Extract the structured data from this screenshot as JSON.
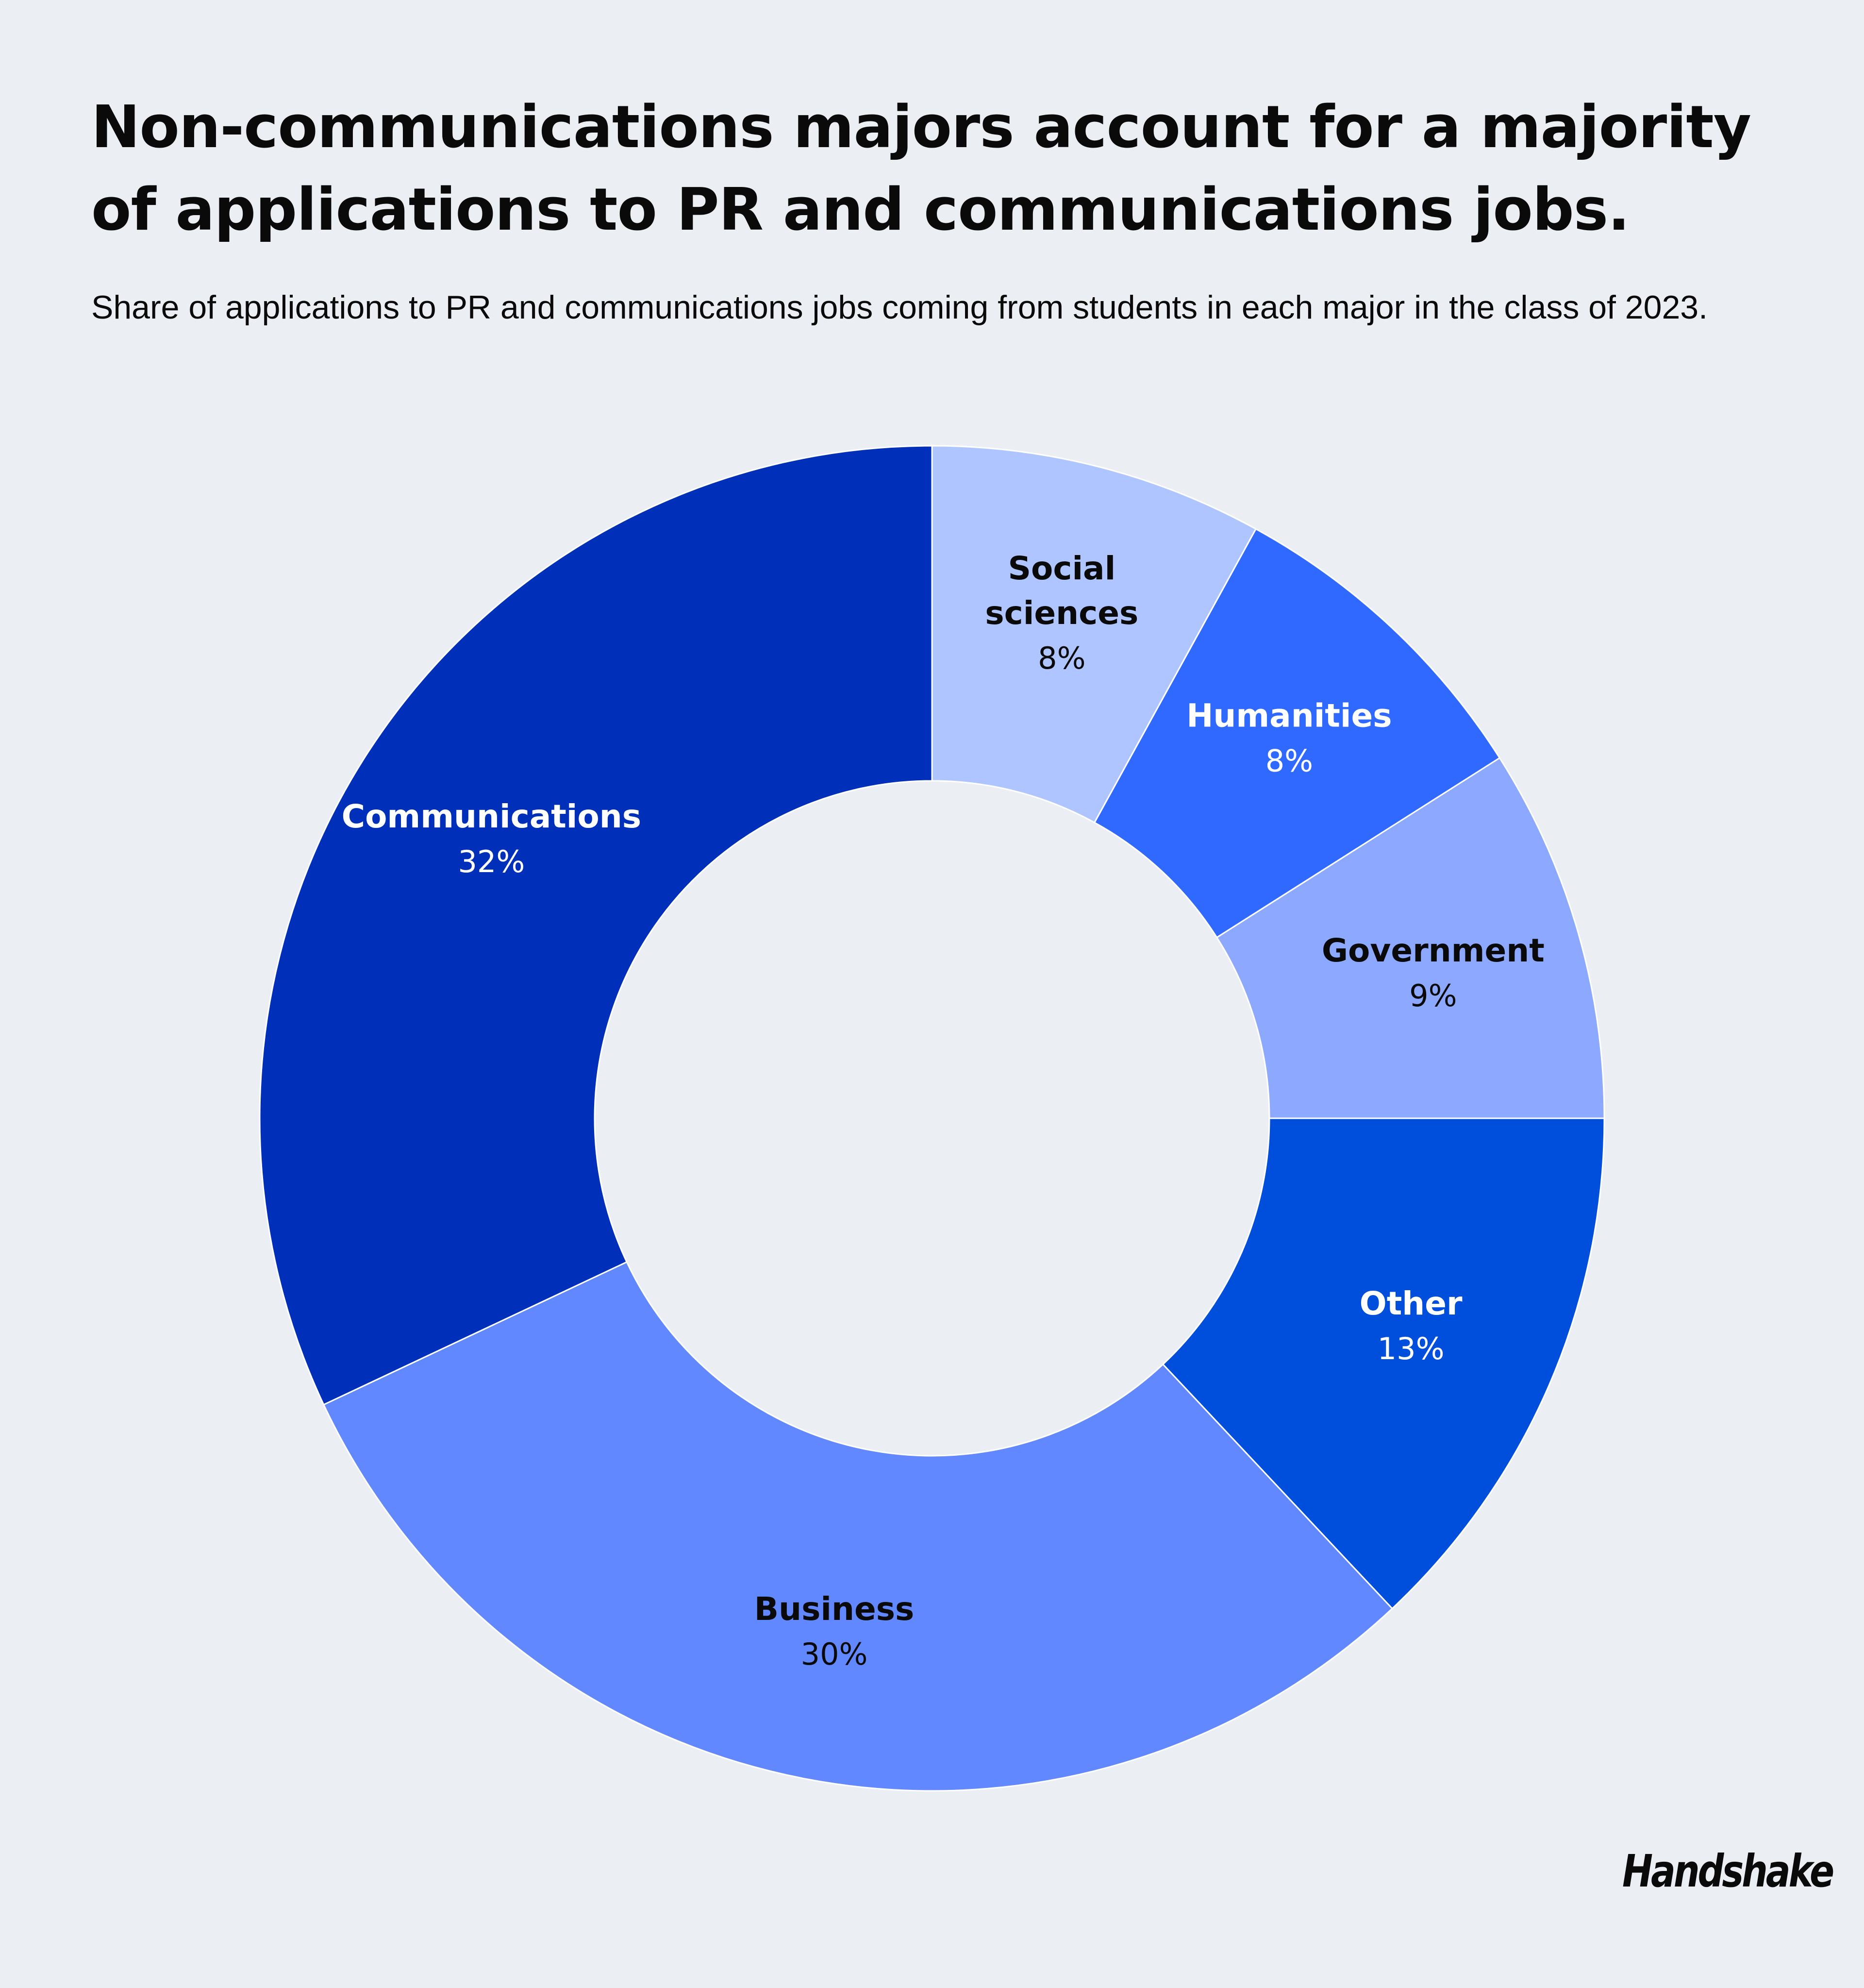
{
  "title": "Non-communications majors account for a majority of applications to PR and communications jobs.",
  "subtitle": "Share of applications to PR and communications jobs coming from students in each major in the class of 2023.",
  "brand": "Handshake",
  "chart_data": {
    "type": "pie",
    "variant": "donut",
    "title": "Non-communications majors account for a majority of applications to PR and communications jobs.",
    "subtitle": "Share of applications to PR and communications jobs coming from students in each major in the class of 2023.",
    "unit": "%",
    "legend": "none (labels on slices)",
    "slices": [
      {
        "name": "Social sciences",
        "value": 8,
        "display": "8%",
        "color": "#AFC5FF",
        "label_color": "#0A0A0A",
        "name_lines": [
          "Social",
          "sciences"
        ]
      },
      {
        "name": "Humanities",
        "value": 8,
        "display": "8%",
        "color": "#3069FF",
        "label_color": "#FFFFFF",
        "name_lines": [
          "Humanities"
        ]
      },
      {
        "name": "Government",
        "value": 9,
        "display": "9%",
        "color": "#8CA8FF",
        "label_color": "#0A0A0A",
        "name_lines": [
          "Government"
        ]
      },
      {
        "name": "Other",
        "value": 13,
        "display": "13%",
        "color": "#004EDC",
        "label_color": "#FFFFFF",
        "name_lines": [
          "Other"
        ]
      },
      {
        "name": "Business",
        "value": 30,
        "display": "30%",
        "color": "#6188FF",
        "label_color": "#0A0A0A",
        "name_lines": [
          "Business"
        ]
      },
      {
        "name": "Communications",
        "value": 32,
        "display": "32%",
        "color": "#002FBA",
        "label_color": "#FFFFFF",
        "name_lines": [
          "Communications"
        ]
      }
    ]
  }
}
